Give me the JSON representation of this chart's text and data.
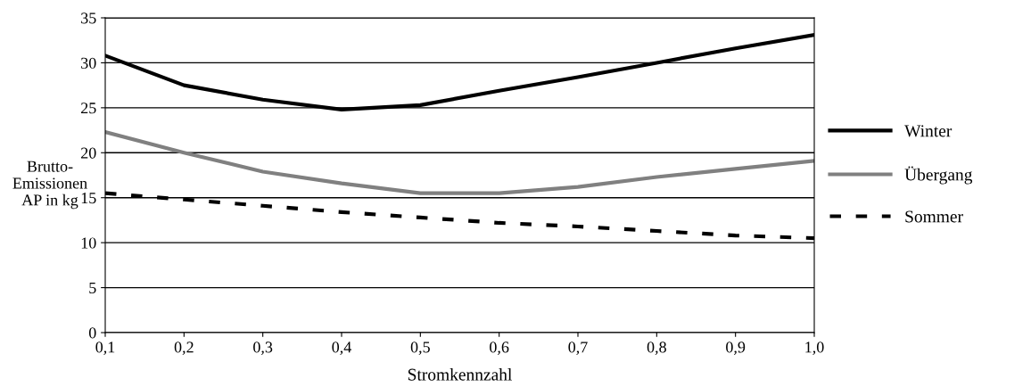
{
  "chart_data": {
    "type": "line",
    "xlabel": "Stromkennzahl",
    "ylabel": "Brutto-\nEmissionen\nAP in kg",
    "categories": [
      "0,1",
      "0,2",
      "0,3",
      "0,4",
      "0,5",
      "0,6",
      "0,7",
      "0,8",
      "0,9",
      "1,0"
    ],
    "series": [
      {
        "name": "Winter",
        "color": "#000000",
        "line_style": "solid",
        "values": [
          30.8,
          27.5,
          25.9,
          24.8,
          25.3,
          26.9,
          28.4,
          30.0,
          31.6,
          33.1
        ]
      },
      {
        "name": "Übergang",
        "color": "#808080",
        "line_style": "solid",
        "values": [
          22.3,
          20.0,
          17.9,
          16.6,
          15.5,
          15.5,
          16.2,
          17.3,
          18.2,
          19.1
        ]
      },
      {
        "name": "Sommer",
        "color": "#000000",
        "line_style": "dashed",
        "values": [
          15.5,
          14.8,
          14.1,
          13.4,
          12.8,
          12.2,
          11.8,
          11.3,
          10.8,
          10.5
        ]
      }
    ],
    "ylim": [
      0,
      35
    ],
    "yticks": [
      0,
      5,
      10,
      15,
      20,
      25,
      30,
      35
    ],
    "grid": "y",
    "legend": "right",
    "marker": "none"
  }
}
